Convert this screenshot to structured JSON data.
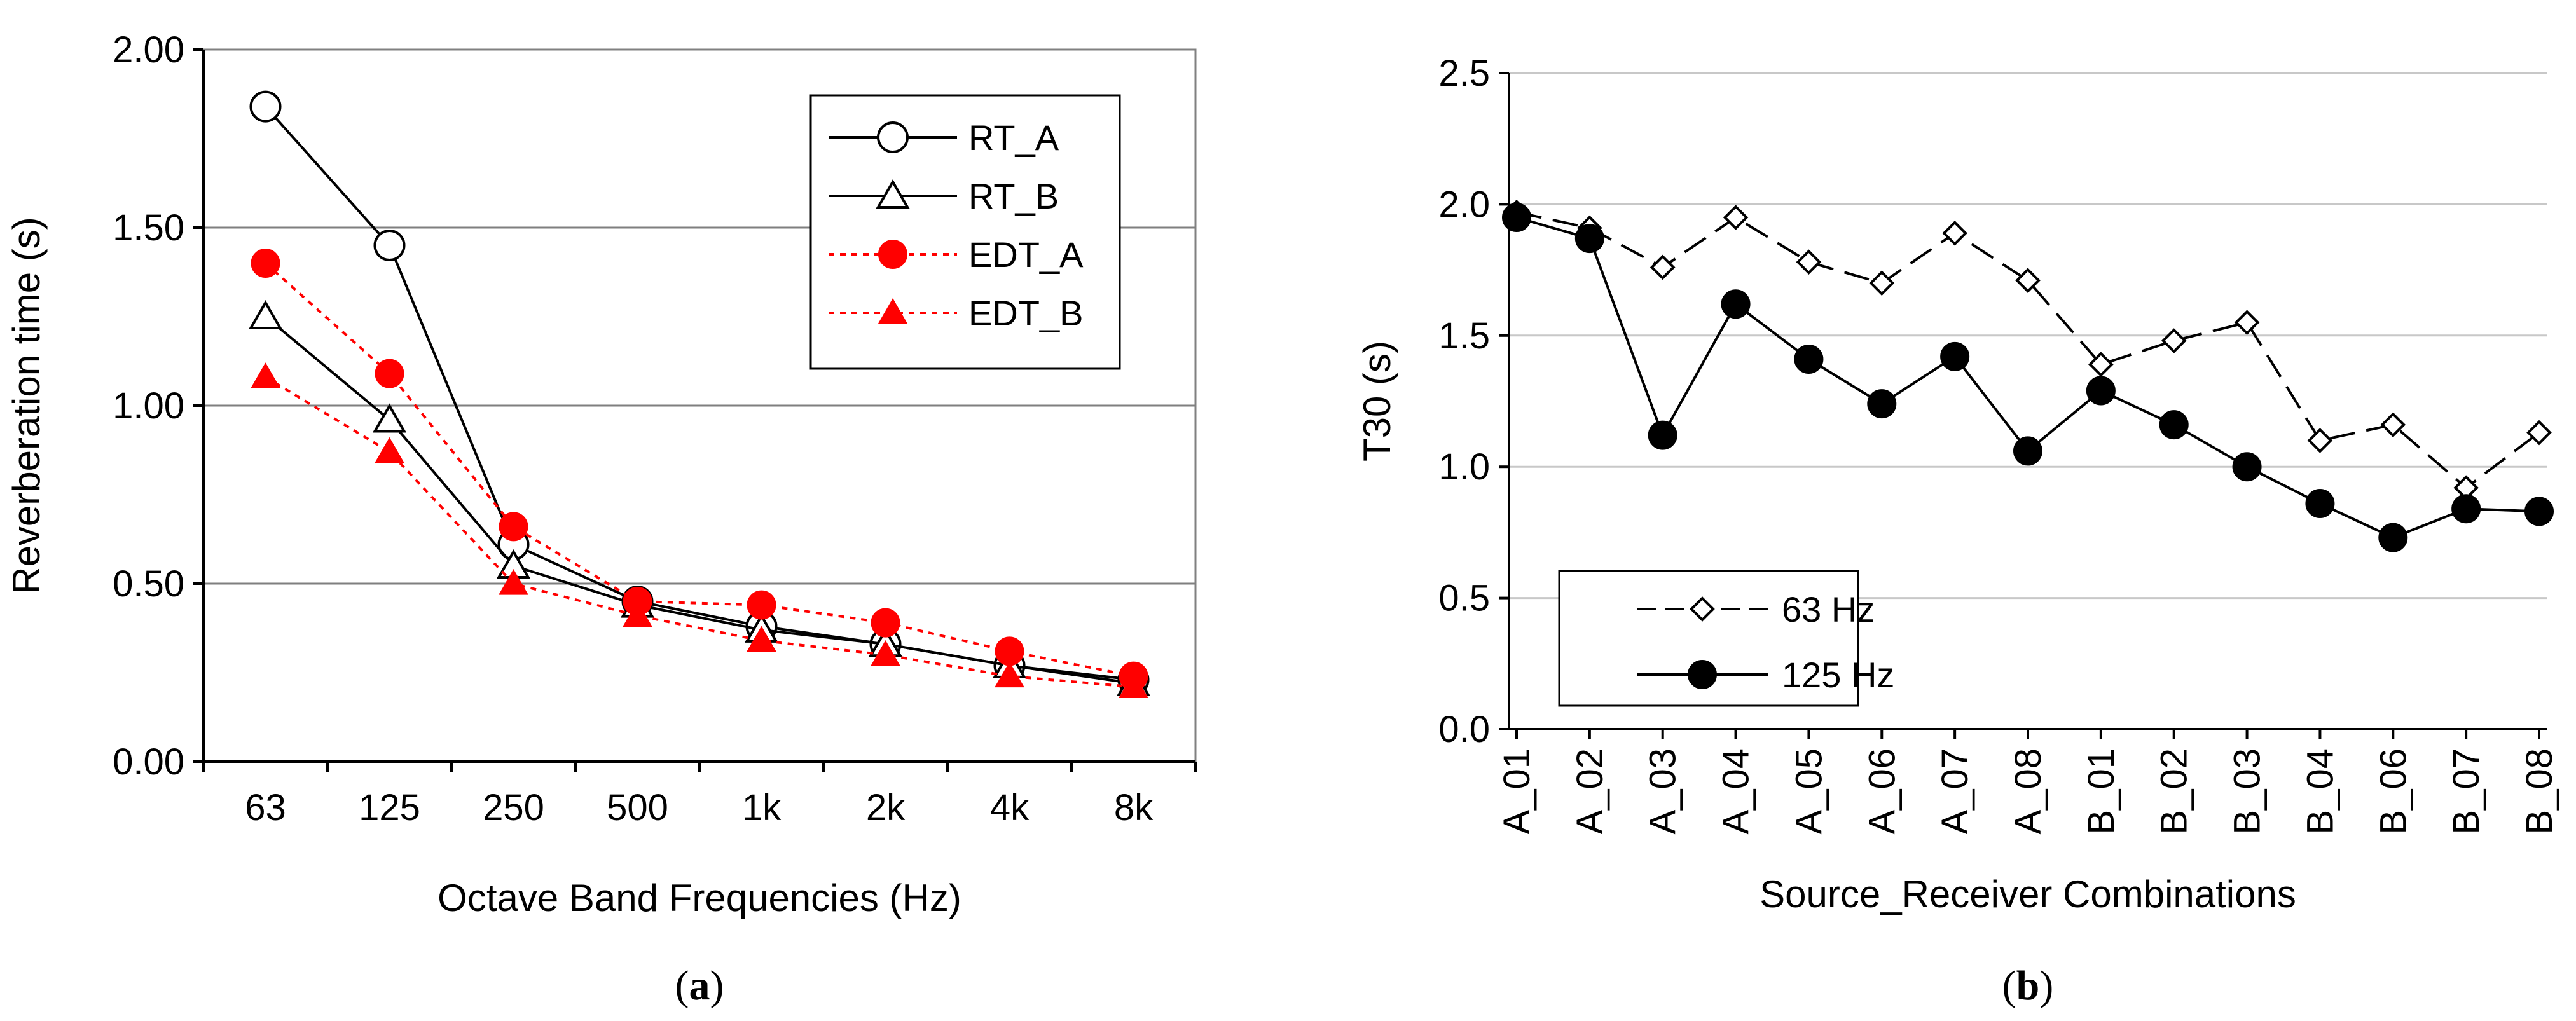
{
  "colors": {
    "black": "#000000",
    "red": "#ff0000",
    "grid": "#b4b4b4"
  },
  "chart_data": [
    {
      "type": "line",
      "panel_caption": {
        "open": "(",
        "letter": "a",
        "close": ")"
      },
      "xlabel": "Octave Band Frequencies (Hz)",
      "ylabel": "Reverberation time (s)",
      "categories": [
        "63",
        "125",
        "250",
        "500",
        "1k",
        "2k",
        "4k",
        "8k"
      ],
      "ylim": [
        0,
        2
      ],
      "yticks": [
        0,
        0.5,
        1,
        1.5,
        2
      ],
      "ytick_labels": [
        "0.00",
        "0.50",
        "1.00",
        "1.50",
        "2.00"
      ],
      "grid": true,
      "legend_position": "top-right",
      "series": [
        {
          "name": "RT_A",
          "marker": "open-circle",
          "line": "solid",
          "color": "#000000",
          "values": [
            1.84,
            1.45,
            0.61,
            0.45,
            0.38,
            0.33,
            0.27,
            0.23
          ]
        },
        {
          "name": "RT_B",
          "marker": "open-triangle",
          "line": "solid",
          "color": "#000000",
          "values": [
            1.25,
            0.96,
            0.55,
            0.44,
            0.37,
            0.33,
            0.27,
            0.22
          ]
        },
        {
          "name": "EDT_A",
          "marker": "filled-circle",
          "line": "dotted",
          "color": "#ff0000",
          "values": [
            1.4,
            1.09,
            0.66,
            0.45,
            0.44,
            0.39,
            0.31,
            0.24
          ]
        },
        {
          "name": "EDT_B",
          "marker": "filled-triangle",
          "line": "dotted",
          "color": "#ff0000",
          "values": [
            1.08,
            0.87,
            0.5,
            0.41,
            0.34,
            0.3,
            0.24,
            0.21
          ]
        }
      ]
    },
    {
      "type": "line",
      "panel_caption": {
        "open": "(",
        "letter": "b",
        "close": ")"
      },
      "xlabel": "Source_Receiver Combinations",
      "ylabel": "T30 (s)",
      "categories": [
        "A_01",
        "A_02",
        "A_03",
        "A_04",
        "A_05",
        "A_06",
        "A_07",
        "A_08",
        "B_01",
        "B_02",
        "B_03",
        "B_04",
        "B_06",
        "B_07",
        "B_08"
      ],
      "ylim": [
        0,
        2.5
      ],
      "yticks": [
        0,
        0.5,
        1,
        1.5,
        2,
        2.5
      ],
      "ytick_labels": [
        "0.0",
        "0.5",
        "1.0",
        "1.5",
        "2.0",
        "2.5"
      ],
      "grid": true,
      "legend_position": "bottom-left",
      "series": [
        {
          "name": "63 Hz",
          "marker": "open-diamond",
          "line": "dashed",
          "color": "#000000",
          "values": [
            1.97,
            1.91,
            1.76,
            1.95,
            1.78,
            1.7,
            1.89,
            1.71,
            1.39,
            1.48,
            1.55,
            1.1,
            1.16,
            0.92,
            1.13
          ]
        },
        {
          "name": "125 Hz",
          "marker": "filled-circle",
          "line": "solid",
          "color": "#000000",
          "values": [
            1.95,
            1.87,
            1.12,
            1.62,
            1.41,
            1.24,
            1.42,
            1.06,
            1.29,
            1.16,
            1.0,
            0.86,
            0.73,
            0.84,
            0.83
          ]
        }
      ]
    }
  ]
}
